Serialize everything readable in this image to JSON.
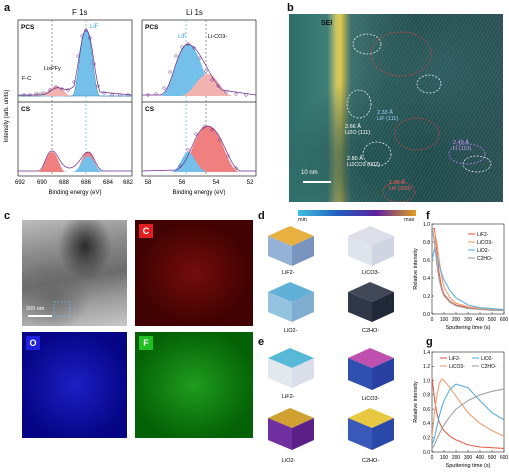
{
  "panels": {
    "a": "a",
    "b": "b",
    "c": "c",
    "d": "d",
    "e": "e",
    "f": "f",
    "g": "g"
  },
  "xps": {
    "f1s_title": "F 1s",
    "li1s_title": "Li 1s",
    "ylabel": "Intensity (arb. units)",
    "xlabel": "Binding energy (eV)",
    "pcs": "PCS",
    "cs": "CS",
    "f_labels": {
      "lif": "LiF",
      "fc": "F-C",
      "lipf": "LixPFy"
    },
    "li_labels": {
      "lif": "LiF",
      "lico3": "Li-CO3-"
    },
    "f_ticks": [
      "692",
      "690",
      "688",
      "686",
      "684",
      "682"
    ],
    "li_ticks": [
      "58",
      "56",
      "54",
      "52"
    ]
  },
  "tem": {
    "sei": "SEI",
    "scale": "10 nm",
    "annotations": [
      {
        "text": "2.33 Å",
        "sub": "LiF (111)"
      },
      {
        "text": "2.66 Å",
        "sub": "Li2O (111)"
      },
      {
        "text": "2.80 Å",
        "sub": "Li2CO3 (002)"
      },
      {
        "text": "2.49 Å",
        "sub": "Li (110)"
      },
      {
        "text": "1.99 Å",
        "sub": "LiF (200)"
      }
    ]
  },
  "eds": {
    "scale": "200 nm",
    "c": "C",
    "o": "O",
    "f": "F"
  },
  "tof": {
    "min": "min",
    "max": "max",
    "d_labels": [
      "LiF2-",
      "LiCO3-",
      "LiO2-",
      "C2HO-"
    ],
    "e_labels": [
      "LiF2-",
      "LiCO3-",
      "LiO2-",
      "C2HO-"
    ]
  },
  "chart_data": [
    {
      "id": "f",
      "type": "line",
      "xlabel": "Sputtering time (s)",
      "ylabel": "Relative intensity",
      "xlim": [
        0,
        600
      ],
      "ylim": [
        0,
        1.0
      ],
      "xticks": [
        0,
        100,
        200,
        300,
        400,
        500,
        600
      ],
      "yticks": [
        0.0,
        0.2,
        0.4,
        0.6,
        0.8,
        1.0
      ],
      "series": [
        {
          "name": "LiF2-",
          "color": "#e8604c",
          "x": [
            0,
            20,
            40,
            60,
            80,
            100,
            150,
            200,
            300,
            400,
            500,
            600
          ],
          "y": [
            0.95,
            0.95,
            0.7,
            0.45,
            0.3,
            0.22,
            0.14,
            0.1,
            0.07,
            0.05,
            0.05,
            0.05
          ]
        },
        {
          "name": "LiCO3-",
          "color": "#f0a070",
          "x": [
            0,
            20,
            40,
            60,
            80,
            100,
            150,
            200,
            300,
            400,
            500,
            600
          ],
          "y": [
            0.9,
            0.92,
            0.8,
            0.6,
            0.42,
            0.3,
            0.18,
            0.12,
            0.08,
            0.06,
            0.05,
            0.05
          ]
        },
        {
          "name": "LiO2-",
          "color": "#5ab0e0",
          "x": [
            0,
            20,
            40,
            60,
            80,
            100,
            150,
            200,
            300,
            400,
            500,
            600
          ],
          "y": [
            0.6,
            0.72,
            0.65,
            0.55,
            0.45,
            0.38,
            0.26,
            0.18,
            0.1,
            0.07,
            0.06,
            0.05
          ]
        },
        {
          "name": "C2HO-",
          "color": "#a0a0a0",
          "x": [
            0,
            20,
            40,
            60,
            80,
            100,
            150,
            200,
            300,
            400,
            500,
            600
          ],
          "y": [
            0.98,
            0.8,
            0.55,
            0.38,
            0.27,
            0.2,
            0.13,
            0.09,
            0.06,
            0.05,
            0.04,
            0.04
          ]
        }
      ]
    },
    {
      "id": "g",
      "type": "line",
      "xlabel": "Sputtering time (s)",
      "ylabel": "Relative intensity",
      "xlim": [
        0,
        600
      ],
      "ylim": [
        0,
        1.4
      ],
      "xticks": [
        0,
        100,
        200,
        300,
        400,
        500,
        600
      ],
      "yticks": [
        0.0,
        0.2,
        0.4,
        0.6,
        0.8,
        1.0,
        1.2,
        1.4
      ],
      "series": [
        {
          "name": "LiF2-",
          "color": "#e8604c",
          "x": [
            0,
            20,
            40,
            60,
            80,
            100,
            150,
            200,
            300,
            400,
            500,
            600
          ],
          "y": [
            1.05,
            0.75,
            0.55,
            0.42,
            0.35,
            0.3,
            0.22,
            0.17,
            0.1,
            0.07,
            0.06,
            0.05
          ]
        },
        {
          "name": "LiCO3-",
          "color": "#f0a070",
          "x": [
            0,
            20,
            40,
            60,
            80,
            100,
            150,
            200,
            300,
            400,
            500,
            600
          ],
          "y": [
            0.2,
            0.55,
            0.78,
            0.95,
            1.02,
            1.0,
            0.9,
            0.78,
            0.55,
            0.4,
            0.3,
            0.22
          ]
        },
        {
          "name": "LiO2-",
          "color": "#5ab0e0",
          "x": [
            0,
            20,
            40,
            60,
            80,
            100,
            150,
            200,
            300,
            400,
            500,
            600
          ],
          "y": [
            0.1,
            0.2,
            0.35,
            0.5,
            0.62,
            0.72,
            0.88,
            0.95,
            0.9,
            0.72,
            0.55,
            0.45
          ]
        },
        {
          "name": "C2HO-",
          "color": "#a0a0a0",
          "x": [
            0,
            20,
            40,
            60,
            80,
            100,
            150,
            200,
            300,
            400,
            500,
            600
          ],
          "y": [
            0.05,
            0.1,
            0.18,
            0.25,
            0.32,
            0.38,
            0.5,
            0.6,
            0.72,
            0.8,
            0.85,
            0.88
          ]
        }
      ]
    }
  ]
}
